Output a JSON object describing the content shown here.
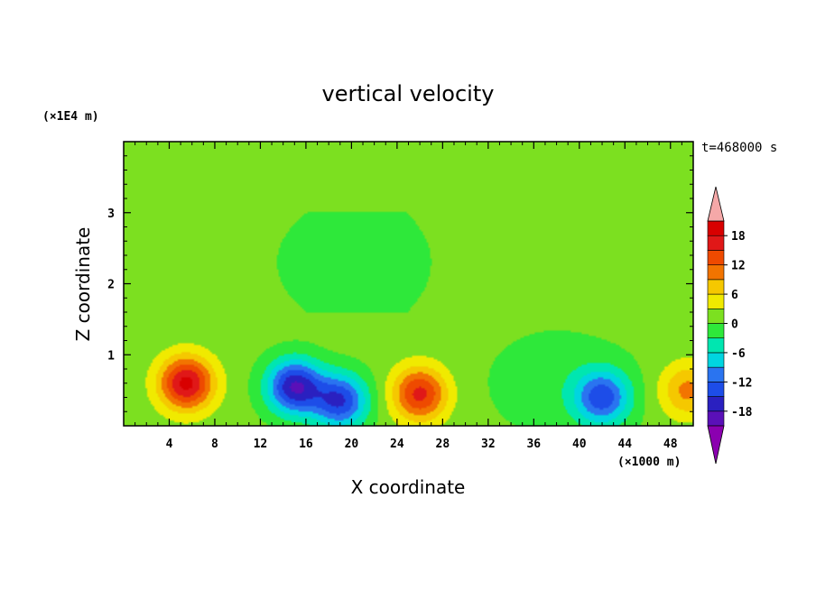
{
  "chart_data": {
    "type": "heatmap",
    "title": "vertical velocity",
    "xlabel": "X coordinate",
    "ylabel": "Z coordinate",
    "x_unit": "(×1000 m)",
    "y_unit": "(×1E4 m)",
    "time_label": "t=468000 s",
    "xlim": [
      0,
      50
    ],
    "ylim": [
      0,
      4
    ],
    "x_ticks": [
      4,
      8,
      12,
      16,
      20,
      24,
      28,
      32,
      36,
      40,
      44,
      48
    ],
    "y_ticks": [
      1,
      2,
      3
    ],
    "colorbar": {
      "min": -21,
      "max": 21,
      "step": 3,
      "tick_labels": [
        18,
        12,
        6,
        0,
        -6,
        -12,
        -18
      ],
      "extend": "both",
      "colors": [
        "#8b00b0",
        "#5a10b8",
        "#2a20c0",
        "#1a2ed6",
        "#1d4de8",
        "#2a74f0",
        "#2fa0f5",
        "#00d5e0",
        "#00e6b0",
        "#00e97a",
        "#2ee83a",
        "#7ce020",
        "#c8e800",
        "#f0ea00",
        "#f5c800",
        "#f5a000",
        "#f27400",
        "#ee4a00",
        "#e82a00",
        "#e01818",
        "#d80000",
        "#f5a8a8"
      ]
    },
    "features": [
      {
        "x": 5.5,
        "z": 0.6,
        "w": 18,
        "label": "updraft"
      },
      {
        "x": 15,
        "z": 0.55,
        "w": -19,
        "label": "downdraft"
      },
      {
        "x": 19,
        "z": 0.35,
        "w": -16,
        "label": "downdraft"
      },
      {
        "x": 26,
        "z": 0.45,
        "w": 15,
        "label": "updraft"
      },
      {
        "x": 42,
        "z": 0.4,
        "w": -14,
        "label": "downdraft"
      },
      {
        "x": 49.5,
        "z": 0.5,
        "w": 9,
        "label": "updraft"
      },
      {
        "x": 20,
        "z": 2.3,
        "w": -3,
        "label": "weak downdraft aloft"
      }
    ]
  }
}
